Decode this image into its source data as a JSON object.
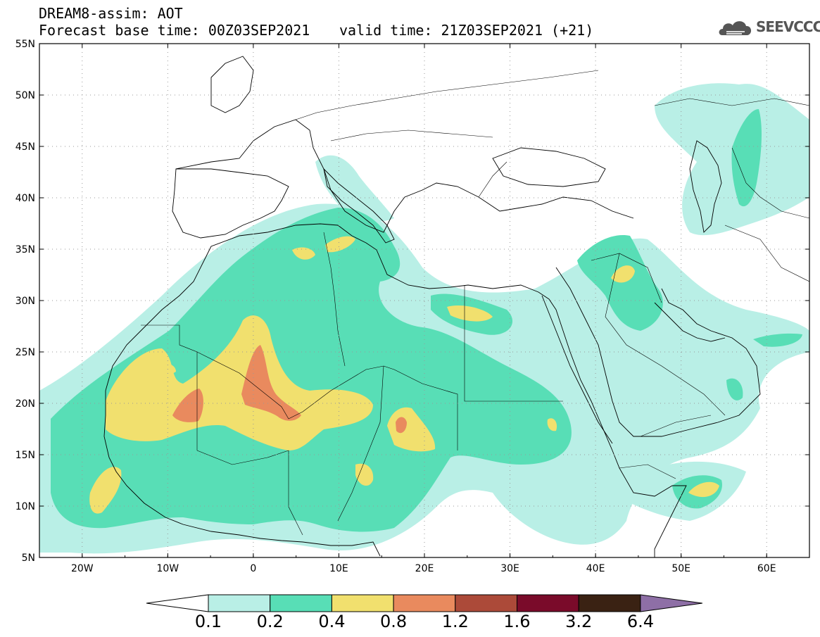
{
  "header": {
    "line1": "DREAM8-assim: AOT",
    "base_time": "Forecast base time: 00Z03SEP2021",
    "valid_time": "valid time: 21Z03SEP2021 (+21)"
  },
  "logo": {
    "text": "SEEVCCC",
    "icon": "cloud-icon"
  },
  "map": {
    "lon_range": [
      -25,
      65
    ],
    "lat_range": [
      5,
      55
    ],
    "lat_ticks": [
      "5N",
      "10N",
      "15N",
      "20N",
      "25N",
      "30N",
      "35N",
      "40N",
      "45N",
      "50N",
      "55N"
    ],
    "lon_ticks": [
      "20W",
      "10W",
      "0",
      "10E",
      "20E",
      "30E",
      "40E",
      "50E",
      "60E"
    ],
    "grid": "dotted"
  },
  "legend": {
    "levels": [
      "0.1",
      "0.2",
      "0.4",
      "0.8",
      "1.2",
      "1.6",
      "3.2",
      "6.4"
    ],
    "colors": [
      "#ffffff",
      "#b9efe6",
      "#58deb6",
      "#f1e06e",
      "#e98a5e",
      "#ac4a39",
      "#7a0b2a",
      "#3a2213",
      "#8e6fa6"
    ]
  }
}
